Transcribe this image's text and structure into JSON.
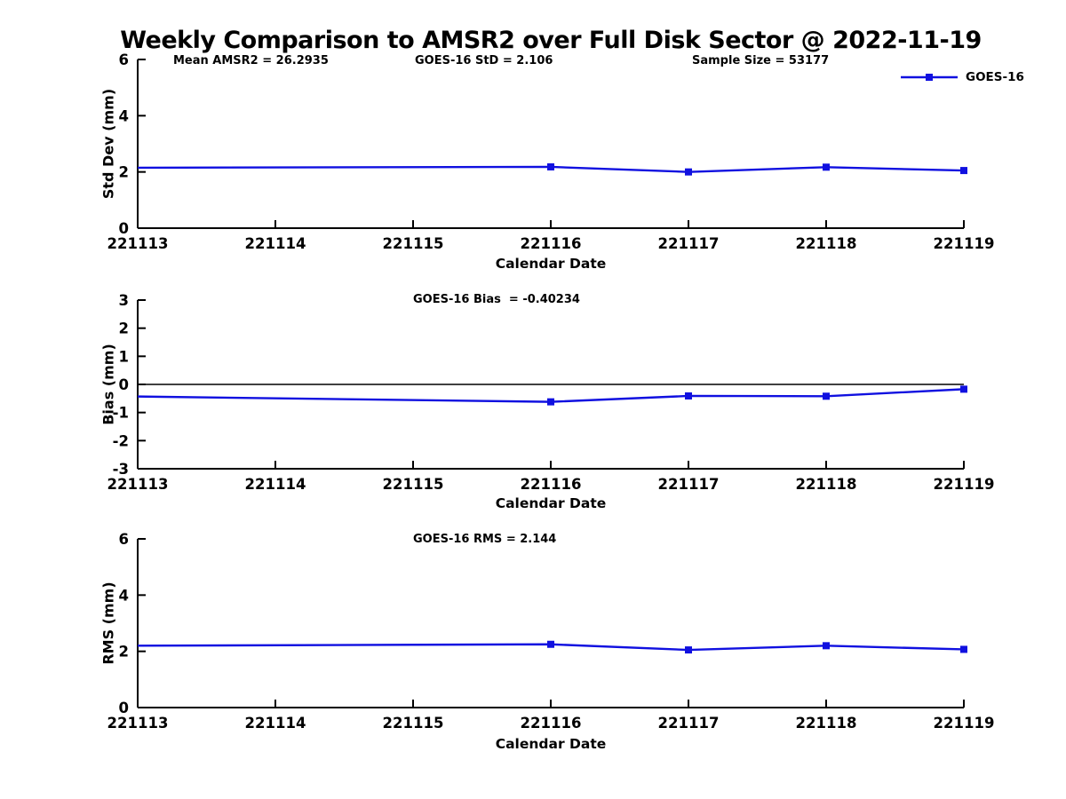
{
  "title": "Weekly Comparison to AMSR2 over Full Disk Sector @ 2022-11-19",
  "legend": {
    "label": "GOES-16",
    "color": "#1010e0"
  },
  "chart_data": [
    {
      "type": "line",
      "id": "std-dev",
      "ylabel": "Std Dev (mm)",
      "xlabel": "Calendar Date",
      "ylim": [
        0,
        6
      ],
      "yticks": [
        0,
        2,
        4,
        6
      ],
      "categories": [
        "221113",
        "221114",
        "221115",
        "221116",
        "221117",
        "221118",
        "221119"
      ],
      "annotations": [
        "Mean AMSR2 = 26.2935",
        "GOES-16 StD = 2.106",
        "Sample Size = 53177"
      ],
      "zero_line": false,
      "legend_position": "top-right-outside",
      "grid": false,
      "series": [
        {
          "name": "GOES-16",
          "color": "#1010e0",
          "points": [
            {
              "x": "221113",
              "y": 2.15,
              "marker": false
            },
            {
              "x": "221116",
              "y": 2.18,
              "marker": true
            },
            {
              "x": "221117",
              "y": 2.0,
              "marker": true
            },
            {
              "x": "221118",
              "y": 2.17,
              "marker": true
            },
            {
              "x": "221119",
              "y": 2.05,
              "marker": true
            }
          ]
        }
      ]
    },
    {
      "type": "line",
      "id": "bias",
      "ylabel": "Bias (mm)",
      "xlabel": "Calendar Date",
      "ylim": [
        -3,
        3
      ],
      "yticks": [
        -3,
        -2,
        -1,
        0,
        1,
        2,
        3
      ],
      "categories": [
        "221113",
        "221114",
        "221115",
        "221116",
        "221117",
        "221118",
        "221119"
      ],
      "annotations": [
        "GOES-16 Bias  = -0.40234"
      ],
      "zero_line": true,
      "grid": false,
      "series": [
        {
          "name": "GOES-16",
          "color": "#1010e0",
          "points": [
            {
              "x": "221113",
              "y": -0.43,
              "marker": false
            },
            {
              "x": "221116",
              "y": -0.62,
              "marker": true
            },
            {
              "x": "221117",
              "y": -0.41,
              "marker": true
            },
            {
              "x": "221118",
              "y": -0.42,
              "marker": true
            },
            {
              "x": "221119",
              "y": -0.17,
              "marker": true
            }
          ]
        }
      ]
    },
    {
      "type": "line",
      "id": "rms",
      "ylabel": "RMS (mm)",
      "xlabel": "Calendar Date",
      "ylim": [
        0,
        6
      ],
      "yticks": [
        0,
        2,
        4,
        6
      ],
      "categories": [
        "221113",
        "221114",
        "221115",
        "221116",
        "221117",
        "221118",
        "221119"
      ],
      "annotations": [
        "GOES-16 RMS = 2.144"
      ],
      "zero_line": false,
      "grid": false,
      "series": [
        {
          "name": "GOES-16",
          "color": "#1010e0",
          "points": [
            {
              "x": "221113",
              "y": 2.2,
              "marker": false
            },
            {
              "x": "221116",
              "y": 2.25,
              "marker": true
            },
            {
              "x": "221117",
              "y": 2.05,
              "marker": true
            },
            {
              "x": "221118",
              "y": 2.2,
              "marker": true
            },
            {
              "x": "221119",
              "y": 2.07,
              "marker": true
            }
          ]
        }
      ]
    }
  ]
}
